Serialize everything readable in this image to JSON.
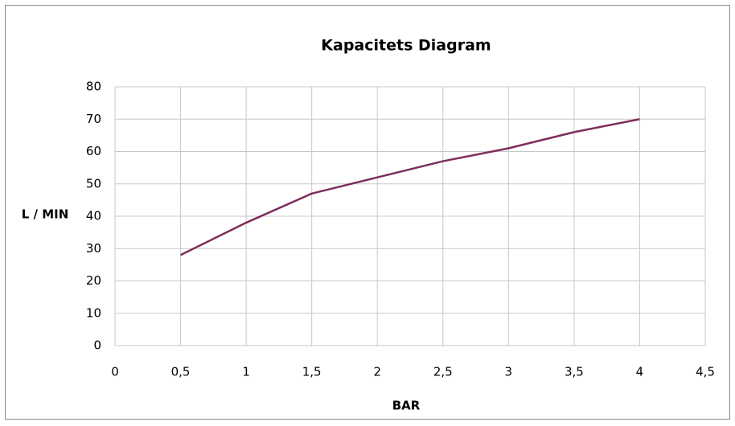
{
  "chart_data": {
    "type": "line",
    "title": "Kapacitets Diagram",
    "x_label": "BAR",
    "y_label": "L / MIN",
    "x": [
      0.5,
      1,
      1.5,
      2,
      2.5,
      3,
      3.5,
      4
    ],
    "series": [
      {
        "color": "#7e2d5c",
        "values": [
          28,
          38,
          47,
          52,
          57,
          61,
          66,
          70
        ]
      }
    ],
    "xlim": [
      0,
      4.5
    ],
    "xticks": [
      0,
      {
        "value": 0.5,
        "label": "0,5"
      },
      1,
      {
        "value": 1.5,
        "label": "1,5"
      },
      2,
      {
        "value": 2.5,
        "label": "2,5"
      },
      3,
      {
        "value": 3.5,
        "label": "3,5"
      },
      4,
      {
        "value": 4.5,
        "label": "4,5"
      }
    ],
    "ylim": [
      0,
      80
    ],
    "yticks": [
      0,
      10,
      20,
      30,
      40,
      50,
      60,
      70,
      80
    ],
    "grid": true
  }
}
